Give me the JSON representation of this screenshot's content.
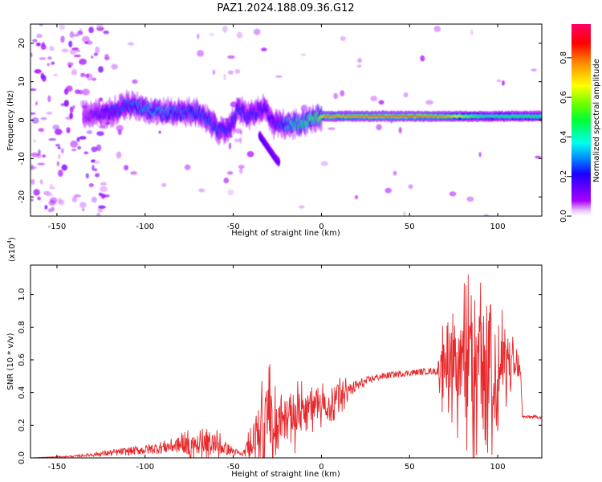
{
  "figure": {
    "title": "PAZ1.2024.188.09.36.G12"
  },
  "chart_data": [
    {
      "type": "heatmap",
      "xlabel": "Height of straight line (km)",
      "ylabel": "Frequency (Hz)",
      "xlim": [
        -165,
        125
      ],
      "ylim": [
        -25,
        25
      ],
      "xticks": [
        -150,
        -100,
        -50,
        0,
        50,
        100
      ],
      "yticks": [
        20,
        10,
        0,
        -10,
        -20
      ],
      "grid": false,
      "ridge": {
        "x": [
          -135,
          -120,
          -110,
          -100,
          -90,
          -80,
          -70,
          -62,
          -57,
          -52,
          -47,
          -42,
          -37,
          -32,
          -27,
          -22,
          -17,
          -12,
          -7,
          -2,
          3,
          10,
          30,
          50,
          70,
          85,
          95,
          105,
          115,
          125
        ],
        "y": [
          1,
          2,
          4,
          3,
          2,
          2,
          2,
          -1,
          -3,
          -2,
          3,
          1,
          2,
          3,
          -1,
          -1,
          -1,
          -1,
          0,
          1,
          1,
          1,
          1,
          1,
          1,
          1,
          1,
          1,
          1,
          1
        ],
        "strength": [
          0.1,
          0.25,
          0.3,
          0.35,
          0.35,
          0.3,
          0.3,
          0.3,
          0.28,
          0.25,
          0.28,
          0.25,
          0.25,
          0.22,
          0.22,
          0.3,
          0.45,
          0.5,
          0.55,
          0.6,
          0.85,
          0.8,
          0.85,
          0.85,
          0.8,
          0.55,
          0.45,
          0.5,
          0.5,
          0.5
        ]
      },
      "branch": {
        "x": [
          -35,
          -32,
          -29,
          -26,
          -24
        ],
        "y": [
          -4,
          -6,
          -8,
          -10,
          -11
        ],
        "strength": [
          0.2,
          0.22,
          0.2,
          0.18,
          0.15
        ]
      },
      "colorbar": {
        "label": "Normalized spectral amplitude",
        "ticks": [
          0.0,
          0.2,
          0.4,
          0.6,
          0.8
        ],
        "range": [
          0.0,
          0.97
        ],
        "colormap": "gist_rainbow_r",
        "low_color": "#ffffff",
        "high_color": "#ff0055"
      }
    },
    {
      "type": "line",
      "xlabel": "Height of straight line (km)",
      "ylabel": "SNR (10 * v/v)",
      "y_scale_label": "(x10",
      "y_scale_exponent": "4",
      "y_scale_close": ")",
      "xlim": [
        -165,
        125
      ],
      "ylim": [
        0.0,
        1.18
      ],
      "xticks": [
        -150,
        -100,
        -50,
        0,
        50,
        100
      ],
      "yticks": [
        0.0,
        0.2,
        0.4,
        0.6,
        0.8,
        1.0
      ],
      "grid": false,
      "series": [
        {
          "color": "#e8282b",
          "x": [
            -165,
            -140,
            -120,
            -100,
            -80,
            -60,
            -45,
            -35,
            -30,
            -25,
            -20,
            -15,
            -10,
            -5,
            0,
            5,
            10,
            20,
            30,
            40,
            50,
            60,
            65,
            70,
            75,
            80,
            85,
            90,
            95,
            100,
            105,
            110,
            113,
            114,
            120,
            125
          ],
          "y": [
            0.0,
            0.01,
            0.03,
            0.05,
            0.08,
            0.08,
            0.02,
            0.14,
            0.25,
            0.2,
            0.24,
            0.27,
            0.3,
            0.3,
            0.32,
            0.33,
            0.37,
            0.44,
            0.49,
            0.51,
            0.52,
            0.53,
            0.53,
            0.54,
            0.55,
            0.56,
            0.56,
            0.55,
            0.55,
            0.55,
            0.55,
            0.54,
            0.54,
            0.25,
            0.25,
            0.25
          ],
          "noise": [
            0.0,
            0.005,
            0.02,
            0.03,
            0.05,
            0.06,
            0.01,
            0.15,
            0.2,
            0.1,
            0.13,
            0.13,
            0.1,
            0.08,
            0.07,
            0.06,
            0.06,
            0.04,
            0.02,
            0.02,
            0.02,
            0.02,
            0.02,
            0.18,
            0.2,
            0.25,
            0.3,
            0.35,
            0.3,
            0.25,
            0.15,
            0.08,
            0.03,
            0.01,
            0.01,
            0.01
          ]
        }
      ]
    }
  ]
}
